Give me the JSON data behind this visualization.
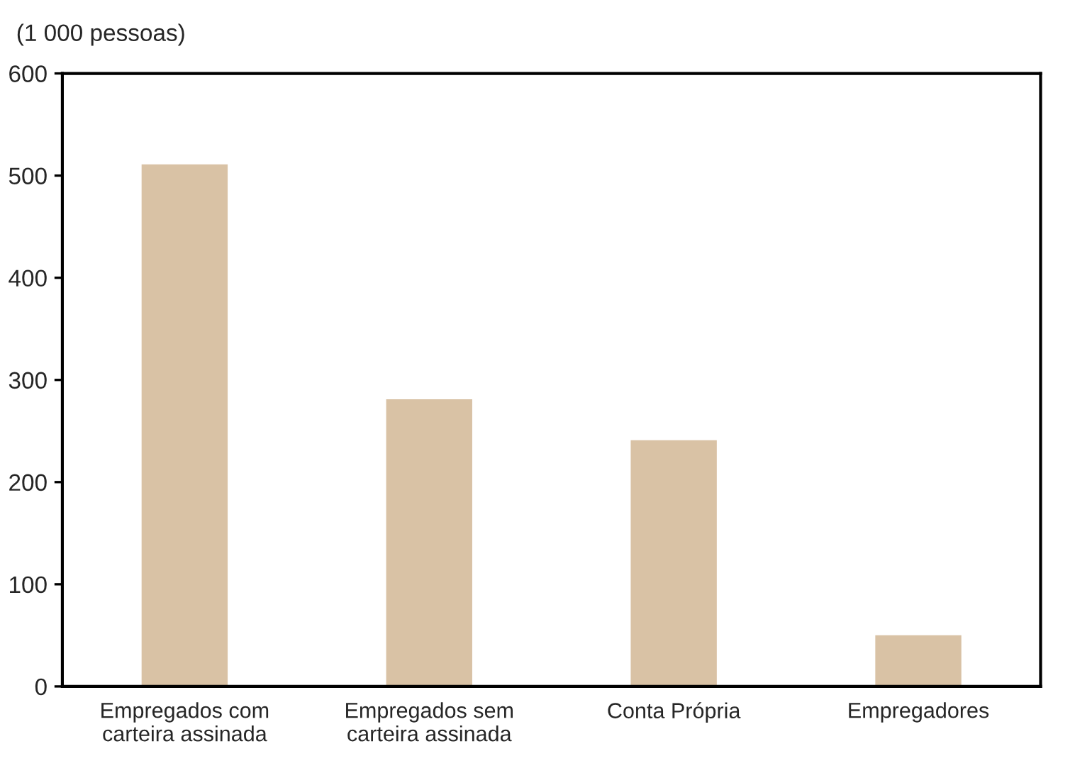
{
  "chart_data": {
    "type": "bar",
    "ylabel": "(1 000 pessoas)",
    "categories": [
      "Empregados com\ncarteira assinada",
      "Empregados sem\ncarteira assinada",
      "Conta Própria",
      "Empregadores"
    ],
    "values": [
      512,
      282,
      242,
      51
    ],
    "color": "#d9c2a5",
    "ylim": [
      0,
      600
    ],
    "yticks": [
      0,
      100,
      200,
      300,
      400,
      500,
      600
    ],
    "grid": false,
    "legend": false
  }
}
